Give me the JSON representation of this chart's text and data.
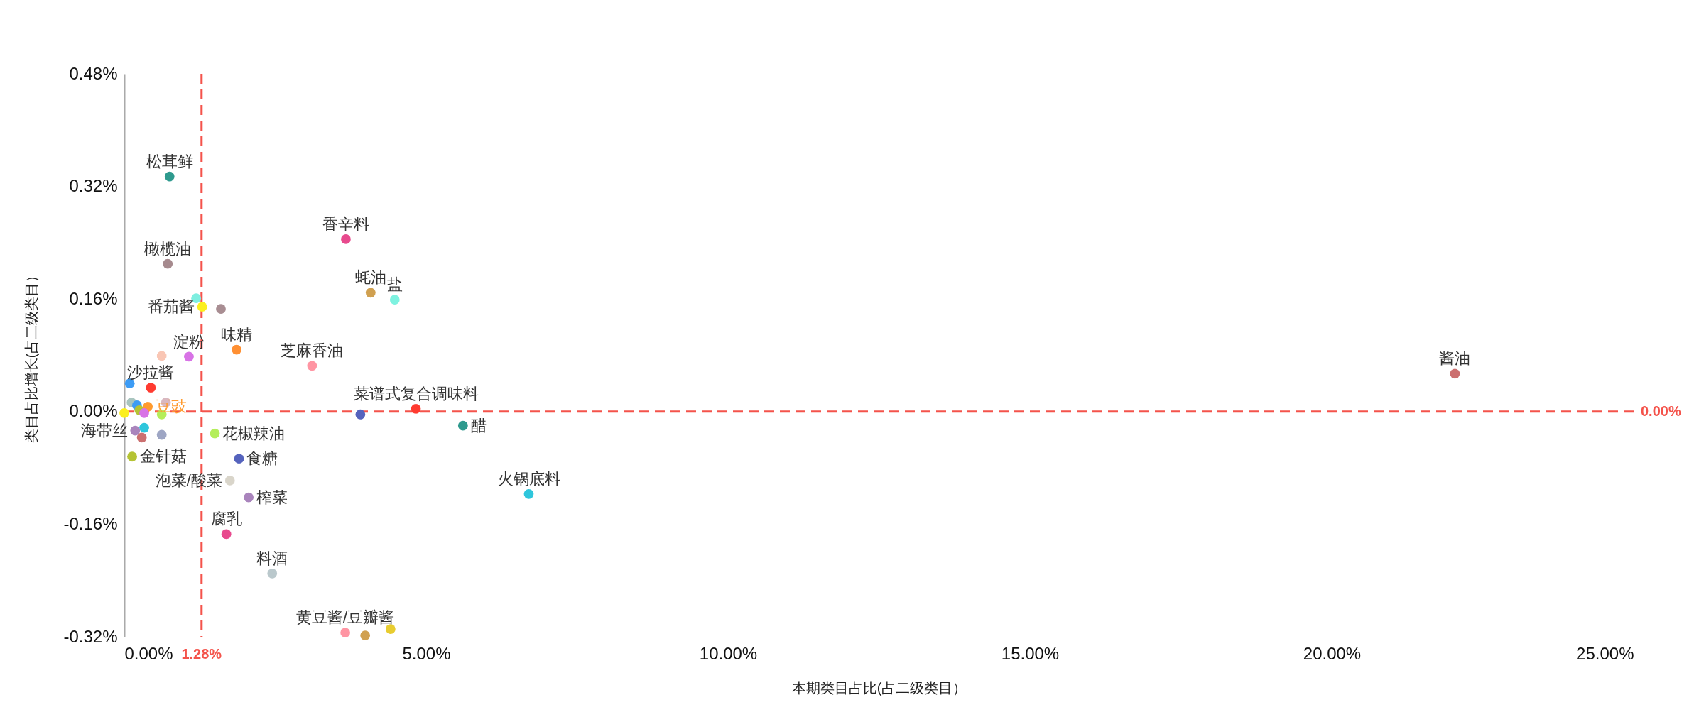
{
  "chart_data": {
    "type": "scatter",
    "xlabel": "本期类目占比(占二级类目）",
    "ylabel": "类目占比增长(占二级类目）",
    "xlim": [
      0,
      25
    ],
    "ylim": [
      -0.32,
      0.48
    ],
    "xticks": [
      {
        "value": 0,
        "label": "0.00%"
      },
      {
        "value": 5,
        "label": "5.00%"
      },
      {
        "value": 10,
        "label": "10.00%"
      },
      {
        "value": 15,
        "label": "15.00%"
      },
      {
        "value": 20,
        "label": "20.00%"
      },
      {
        "value": 25,
        "label": "25.00%"
      }
    ],
    "yticks": [
      {
        "value": -0.32,
        "label": "-0.32%"
      },
      {
        "value": -0.16,
        "label": "-0.16%"
      },
      {
        "value": 0,
        "label": "0.00%"
      },
      {
        "value": 0.16,
        "label": "0.16%"
      },
      {
        "value": 0.32,
        "label": "0.32%"
      },
      {
        "value": 0.48,
        "label": "0.48%"
      }
    ],
    "marker": "circle",
    "ref_lines": [
      {
        "axis": "x",
        "value": 1.28,
        "label": "1.28%",
        "color": "#f4534b",
        "line_style": "dashed"
      },
      {
        "axis": "y",
        "value": 0,
        "label": "0.00%",
        "color": "#f4534b",
        "line_style": "dashed"
      }
    ],
    "series": [
      {
        "name": "松茸鲜",
        "color": "#2e9a8e",
        "x": [
          0.75
        ],
        "values": [
          0.334
        ]
      },
      {
        "name": "橄榄油",
        "color": "#a68a8e",
        "x": [
          0.72
        ],
        "values": [
          0.21
        ]
      },
      {
        "color": "#7eeee0",
        "x": [
          1.19
        ],
        "values": [
          0.161
        ]
      },
      {
        "color": "#a88d92",
        "x": [
          1.6
        ],
        "values": [
          0.146
        ]
      },
      {
        "name": "番茄酱",
        "color": "#fbef1f",
        "x": [
          1.29
        ],
        "values": [
          0.149
        ]
      },
      {
        "name": "味精",
        "color": "#ff9033",
        "x": [
          1.86
        ],
        "values": [
          0.088
        ]
      },
      {
        "color": "#f9c6b4",
        "x": [
          0.62
        ],
        "values": [
          0.079
        ]
      },
      {
        "name": "淀粉",
        "color": "#d873e6",
        "x": [
          1.07
        ],
        "values": [
          0.078
        ]
      },
      {
        "name": "芝麻香油",
        "color": "#ff95a3",
        "x": [
          3.11
        ],
        "values": [
          0.065
        ]
      },
      {
        "name": "香辛料",
        "color": "#e84a8e",
        "x": [
          3.67
        ],
        "values": [
          0.245
        ]
      },
      {
        "name": "蚝油",
        "color": "#d0a050",
        "x": [
          4.08
        ],
        "values": [
          0.169
        ]
      },
      {
        "name": "盐",
        "color": "#7ef2e0",
        "x": [
          4.48
        ],
        "values": [
          0.159
        ]
      },
      {
        "color": "#3d9cf5",
        "x": [
          0.09
        ],
        "values": [
          0.04
        ]
      },
      {
        "name": "沙拉酱",
        "color": "#ff3b30",
        "x": [
          0.44
        ],
        "values": [
          0.034
        ]
      },
      {
        "color": "#d9b8c0",
        "x": [
          0.69
        ],
        "values": [
          0.013
        ]
      },
      {
        "color": "#a9c5bf",
        "x": [
          0.12
        ],
        "values": [
          0.013
        ]
      },
      {
        "color": "#3d9cf5",
        "x": [
          0.21
        ],
        "values": [
          0.009
        ]
      },
      {
        "color": "#fbef1f",
        "x": [
          0
        ],
        "values": [
          -0.002
        ]
      },
      {
        "color": "#b5c334",
        "x": [
          0.25
        ],
        "values": [
          0.002
        ]
      },
      {
        "name": "豆豉",
        "color": "#ff9a2e",
        "x": [
          0.39
        ],
        "values": [
          0.007
        ]
      },
      {
        "color": "#d873e6",
        "x": [
          0.33
        ],
        "values": [
          -0.002
        ]
      },
      {
        "color": "#b4ee5a",
        "x": [
          0.62
        ],
        "values": [
          -0.004
        ]
      },
      {
        "color": "#2ec6dc",
        "x": [
          0.33
        ],
        "values": [
          -0.023
        ]
      },
      {
        "color": "#cc7070",
        "x": [
          0.29
        ],
        "values": [
          -0.037
        ]
      },
      {
        "color": "#9ea6c4",
        "x": [
          0.62
        ],
        "values": [
          -0.033
        ]
      },
      {
        "name": "海带丝",
        "color": "#a984bc",
        "x": [
          0.18
        ],
        "values": [
          -0.027
        ]
      },
      {
        "name": "金针菇",
        "color": "#b5c334",
        "x": [
          0.13
        ],
        "values": [
          -0.064
        ]
      },
      {
        "name": "花椒辣油",
        "color": "#b4ee5a",
        "x": [
          1.5
        ],
        "values": [
          -0.031
        ]
      },
      {
        "name": "食糖",
        "color": "#5563bd",
        "x": [
          1.9
        ],
        "values": [
          -0.067
        ]
      },
      {
        "name": "泡菜/酸菜",
        "color": "#d9d5ca",
        "x": [
          1.75
        ],
        "values": [
          -0.098
        ]
      },
      {
        "name": "榨菜",
        "color": "#a984bc",
        "x": [
          2.06
        ],
        "values": [
          -0.122
        ]
      },
      {
        "name": "腐乳",
        "color": "#e84a8e",
        "x": [
          1.69
        ],
        "values": [
          -0.174
        ]
      },
      {
        "name": "料酒",
        "color": "#bac8cc",
        "x": [
          2.45
        ],
        "values": [
          -0.23
        ]
      },
      {
        "name": "黄豆酱/豆瓣酱",
        "color": "#ff95a3",
        "x": [
          3.66
        ],
        "values": [
          -0.314
        ]
      },
      {
        "color": "#d0a050",
        "x": [
          3.99
        ],
        "values": [
          -0.318
        ]
      },
      {
        "color": "#e8cc30",
        "x": [
          4.41
        ],
        "values": [
          -0.309
        ]
      },
      {
        "color": "#5563bd",
        "x": [
          3.91
        ],
        "values": [
          -0.004
        ]
      },
      {
        "name": "菜谱式复合调味料",
        "color": "#ff3b30",
        "x": [
          4.83
        ],
        "values": [
          0.004
        ]
      },
      {
        "name": "醋",
        "color": "#2e9a8e",
        "x": [
          5.61
        ],
        "values": [
          -0.02
        ]
      },
      {
        "name": "火锅底料",
        "color": "#2ec6dc",
        "x": [
          6.7
        ],
        "values": [
          -0.117
        ]
      },
      {
        "name": "酱油",
        "color": "#cc7070",
        "x": [
          22.04
        ],
        "values": [
          0.054
        ]
      }
    ]
  }
}
